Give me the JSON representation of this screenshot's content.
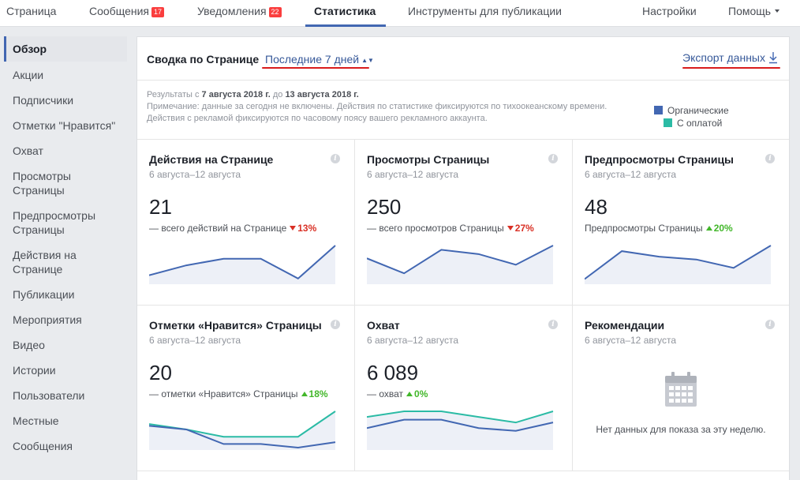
{
  "topnav": {
    "items": [
      {
        "label": "Страница"
      },
      {
        "label": "Сообщения",
        "badge": "17"
      },
      {
        "label": "Уведомления",
        "badge": "22"
      },
      {
        "label": "Статистика"
      },
      {
        "label": "Инструменты для публикации"
      },
      {
        "label": "Настройки"
      },
      {
        "label": "Помощь"
      }
    ]
  },
  "sidebar": {
    "items": [
      {
        "label": "Обзор"
      },
      {
        "label": "Акции"
      },
      {
        "label": "Подписчики"
      },
      {
        "label": "Отметки \"Нравится\""
      },
      {
        "label": "Охват"
      },
      {
        "label": "Просмотры Страницы"
      },
      {
        "label": "Предпросмотры Страницы"
      },
      {
        "label": "Действия на Странице"
      },
      {
        "label": "Публикации"
      },
      {
        "label": "Мероприятия"
      },
      {
        "label": "Видео"
      },
      {
        "label": "Истории"
      },
      {
        "label": "Пользователи"
      },
      {
        "label": "Местные"
      },
      {
        "label": "Сообщения"
      }
    ]
  },
  "header": {
    "title": "Сводка по Странице",
    "period": "Последние 7 дней",
    "export": "Экспорт данных"
  },
  "note": {
    "results_prefix": "Результаты с ",
    "date_from": "7 августа 2018 г.",
    "results_mid": " до ",
    "date_to": "13 августа 2018 г.",
    "line2": "Примечание: данные за сегодня не включены. Действия по статистике фиксируются по тихоокеанскому времени.",
    "line3": "Действия с рекламой фиксируются по часовому поясу вашего рекламного аккаунта."
  },
  "legend": {
    "organic": "Органические",
    "paid": "С оплатой"
  },
  "colors": {
    "organic": "#4267b2",
    "paid": "#2bbba5",
    "accent": "#4267b2",
    "down": "#d93025",
    "up": "#42b72a"
  },
  "cards": [
    {
      "title": "Действия на Странице",
      "subtitle": "6 августа–12 августа",
      "value": "21",
      "desc": "— всего действий на Странице",
      "change": "13%",
      "direction": "down",
      "organic": [
        2,
        5,
        7,
        7,
        1,
        11
      ],
      "paid": null
    },
    {
      "title": "Просмотры Страницы",
      "subtitle": "6 августа–12 августа",
      "value": "250",
      "desc": "— всего просмотров Страницы",
      "change": "27%",
      "direction": "down",
      "organic": [
        5.5,
        2,
        7.5,
        6.5,
        4,
        8.5
      ],
      "paid": null
    },
    {
      "title": "Предпросмотры Страницы",
      "subtitle": "6 августа–12 августа",
      "value": "48",
      "desc": "Предпросмотры Страницы",
      "change": "20%",
      "direction": "up",
      "organic": [
        0.5,
        5.5,
        4.5,
        4,
        2.5,
        6.5
      ],
      "paid": null
    },
    {
      "title": "Отметки «Нравится» Страницы",
      "subtitle": "6 августа–12 августа",
      "value": "20",
      "desc": "— отметки «Нравится» Страницы",
      "change": "18%",
      "direction": "up",
      "organic": [
        6,
        5,
        1,
        1,
        0,
        1.5
      ],
      "paid": [
        6.5,
        5,
        3,
        3,
        3,
        10
      ]
    },
    {
      "title": "Охват",
      "subtitle": "6 августа–12 августа",
      "value": "6 089",
      "desc": "— охват",
      "change": "0%",
      "direction": "up",
      "organic": [
        3.5,
        5,
        5,
        3.5,
        3,
        4.5
      ],
      "paid": [
        5.5,
        6.5,
        6.5,
        5.5,
        4.5,
        6.5
      ]
    },
    {
      "title": "Рекомендации",
      "subtitle": "6 августа–12 августа",
      "value": "",
      "desc": "",
      "change": "",
      "direction": "",
      "organic": null,
      "paid": null,
      "empty": "Нет данных для показа за эту неделю."
    }
  ]
}
